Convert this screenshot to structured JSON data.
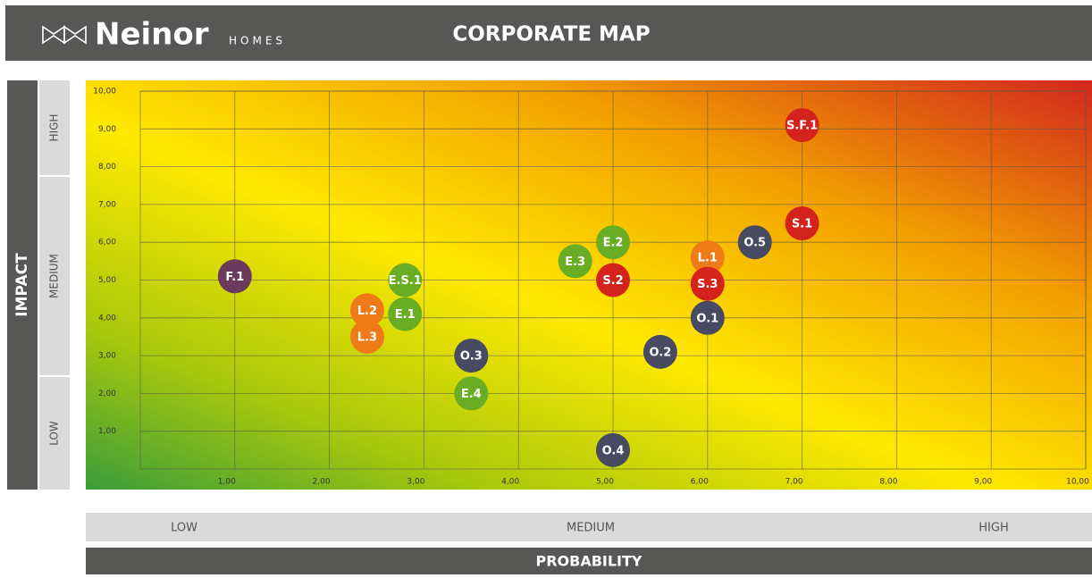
{
  "header": {
    "brand": "Neinor",
    "brand_sub": "HOMES"
  },
  "chart_data": {
    "type": "scatter",
    "title": "CORPORATE MAP",
    "xlabel": "PROBABILITY",
    "ylabel": "IMPACT",
    "x_bands": [
      "LOW",
      "MEDIUM",
      "HIGH"
    ],
    "y_bands": [
      "HIGH",
      "MEDIUM",
      "LOW"
    ],
    "xlim": [
      0,
      10
    ],
    "ylim": [
      0,
      10
    ],
    "xticks": [
      {
        "value": 1,
        "label": "1,00"
      },
      {
        "value": 2,
        "label": "2,00"
      },
      {
        "value": 3,
        "label": "3,00"
      },
      {
        "value": 4,
        "label": "4,00"
      },
      {
        "value": 5,
        "label": "5,00"
      },
      {
        "value": 6,
        "label": "6,00"
      },
      {
        "value": 7,
        "label": "7,00"
      },
      {
        "value": 8,
        "label": "8,00"
      },
      {
        "value": 9,
        "label": "9,00"
      },
      {
        "value": 10,
        "label": "10,00"
      }
    ],
    "yticks": [
      {
        "value": 1,
        "label": "1,00"
      },
      {
        "value": 2,
        "label": "2,00"
      },
      {
        "value": 3,
        "label": "3,00"
      },
      {
        "value": 4,
        "label": "4,00"
      },
      {
        "value": 5,
        "label": "5,00"
      },
      {
        "value": 6,
        "label": "6,00"
      },
      {
        "value": 7,
        "label": "7,00"
      },
      {
        "value": 8,
        "label": "8,00"
      },
      {
        "value": 9,
        "label": "9,00"
      },
      {
        "value": 10,
        "label": "10,00"
      }
    ],
    "grid": true,
    "points": [
      {
        "label": "F.1",
        "x": 1.0,
        "y": 5.1,
        "color": "#6b3b5e"
      },
      {
        "label": "E.S.1",
        "x": 2.8,
        "y": 5.0,
        "color": "#69ad25"
      },
      {
        "label": "L.2",
        "x": 2.4,
        "y": 4.2,
        "color": "#ee7b17"
      },
      {
        "label": "E.1",
        "x": 2.8,
        "y": 4.1,
        "color": "#69ad25"
      },
      {
        "label": "L.3",
        "x": 2.4,
        "y": 3.5,
        "color": "#ee7b17"
      },
      {
        "label": "O.3",
        "x": 3.5,
        "y": 3.0,
        "color": "#474a61"
      },
      {
        "label": "E.4",
        "x": 3.5,
        "y": 2.0,
        "color": "#69ad25"
      },
      {
        "label": "E.3",
        "x": 4.6,
        "y": 5.5,
        "color": "#69ad25"
      },
      {
        "label": "E.2",
        "x": 5.0,
        "y": 6.0,
        "color": "#69ad25"
      },
      {
        "label": "S.2",
        "x": 5.0,
        "y": 5.0,
        "color": "#d4231d"
      },
      {
        "label": "O.4",
        "x": 5.0,
        "y": 0.5,
        "color": "#474a61"
      },
      {
        "label": "O.2",
        "x": 5.5,
        "y": 3.1,
        "color": "#474a61"
      },
      {
        "label": "L.1",
        "x": 6.0,
        "y": 5.6,
        "color": "#ee7b17"
      },
      {
        "label": "S.3",
        "x": 6.0,
        "y": 4.9,
        "color": "#d4231d"
      },
      {
        "label": "O.1",
        "x": 6.0,
        "y": 4.0,
        "color": "#474a61"
      },
      {
        "label": "O.5",
        "x": 6.5,
        "y": 6.0,
        "color": "#474a61"
      },
      {
        "label": "S.1",
        "x": 7.0,
        "y": 6.5,
        "color": "#d4231d"
      },
      {
        "label": "S.F.1",
        "x": 7.0,
        "y": 9.1,
        "color": "#d4231d"
      }
    ]
  }
}
